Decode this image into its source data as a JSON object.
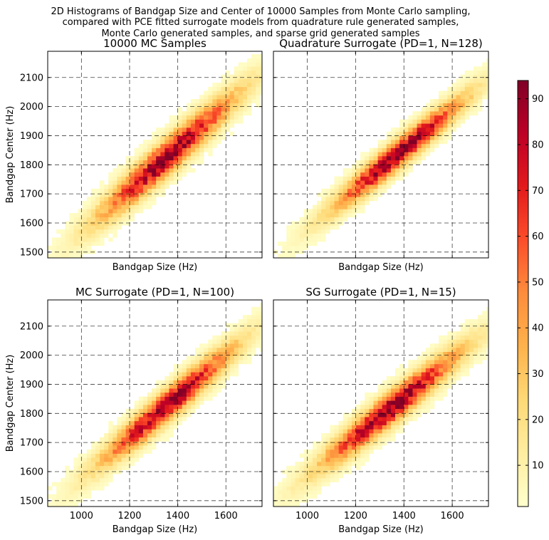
{
  "figure_title": [
    "2D Histograms of Bandgap Size and Center of 10000 Samples from Monte Carlo sampling,",
    "compared with PCE fitted surrogate models from quadrature rule generated samples,",
    "Monte Carlo generated samples, and sparse grid generated samples"
  ],
  "colors": {
    "colormap": [
      "#ffffcc",
      "#ffeda0",
      "#fed976",
      "#feb24c",
      "#fd8d3c",
      "#fc4e2a",
      "#e31a1c",
      "#bd0026",
      "#800026"
    ],
    "grid": "#000000",
    "axes": "#000000"
  },
  "chart_data": [
    {
      "type": "heatmap",
      "title": "10000 MC Samples",
      "xlabel": "Bandgap Size (Hz)",
      "ylabel": "Bandgap Center (Hz)",
      "xlim": [
        860,
        1750
      ],
      "ylim": [
        1480,
        2190
      ],
      "xticks": [],
      "yticks": [
        1500,
        1600,
        1700,
        1800,
        1900,
        2000,
        2100
      ],
      "grid": true,
      "peak": {
        "x": 1360,
        "y": 1830
      },
      "spread": {
        "major": 230,
        "minor": 32
      },
      "max_count": 92
    },
    {
      "type": "heatmap",
      "title": "Quadrature Surrogate (PD=1, N=128)",
      "xlabel": "Bandgap Size (Hz)",
      "ylabel": "",
      "xlim": [
        860,
        1750
      ],
      "ylim": [
        1480,
        2190
      ],
      "xticks": [],
      "yticks": [],
      "grid": true,
      "peak": {
        "x": 1380,
        "y": 1840
      },
      "spread": {
        "major": 220,
        "minor": 28
      },
      "max_count": 94
    },
    {
      "type": "heatmap",
      "title": "MC Surrogate (PD=1, N=100)",
      "xlabel": "Bandgap Size (Hz)",
      "ylabel": "Bandgap Center (Hz)",
      "xlim": [
        860,
        1750
      ],
      "ylim": [
        1480,
        2190
      ],
      "xticks": [
        1000,
        1200,
        1400,
        1600
      ],
      "yticks": [
        1500,
        1600,
        1700,
        1800,
        1900,
        2000,
        2100
      ],
      "grid": true,
      "peak": {
        "x": 1360,
        "y": 1830
      },
      "spread": {
        "major": 225,
        "minor": 30
      },
      "max_count": 90
    },
    {
      "type": "heatmap",
      "title": "SG Surrogate (PD=1, N=15)",
      "xlabel": "Bandgap Size (Hz)",
      "ylabel": "",
      "xlim": [
        860,
        1750
      ],
      "ylim": [
        1480,
        2190
      ],
      "xticks": [
        1000,
        1200,
        1400,
        1600
      ],
      "yticks": [],
      "grid": true,
      "peak": {
        "x": 1350,
        "y": 1820
      },
      "spread": {
        "major": 235,
        "minor": 32
      },
      "max_count": 93
    }
  ],
  "colorbar": {
    "min": 1,
    "max": 94,
    "ticks": [
      10,
      20,
      30,
      40,
      50,
      60,
      70,
      80,
      90
    ]
  }
}
